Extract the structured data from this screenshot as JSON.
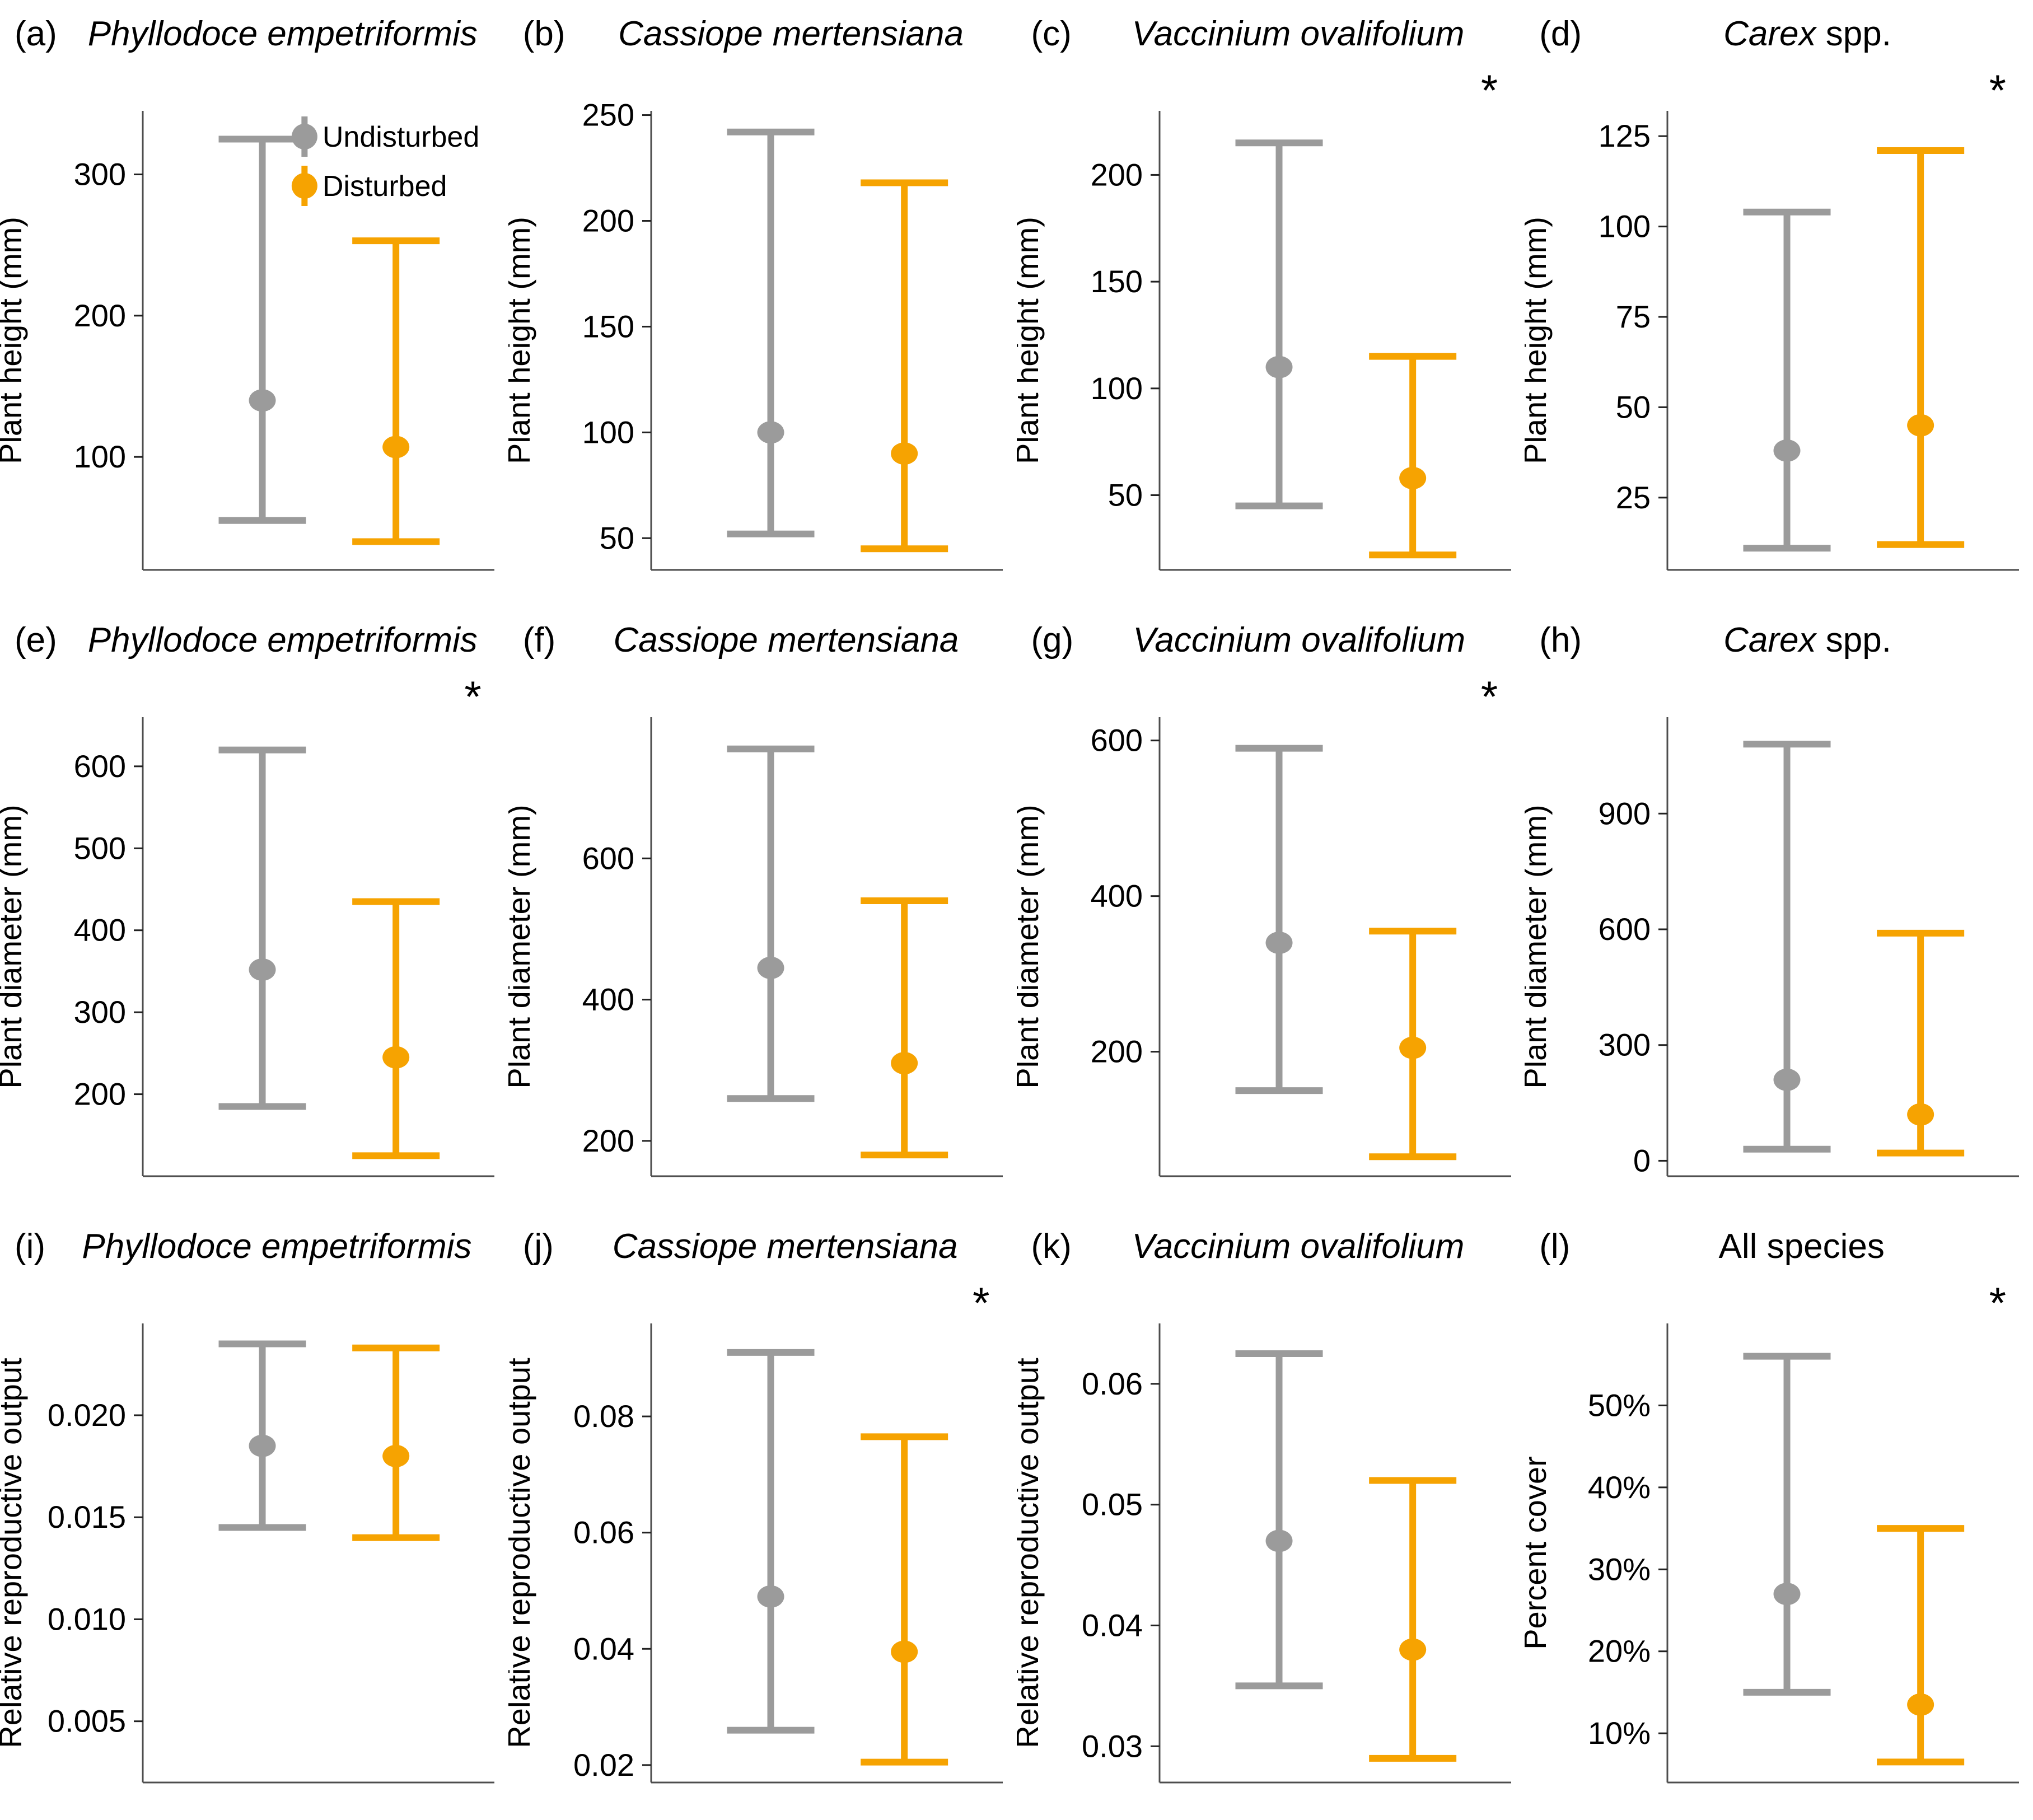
{
  "significance_marker": "*",
  "legend": {
    "panel_id": "a",
    "items": [
      {
        "label": "Undisturbed",
        "color": "#9B9B9B"
      },
      {
        "label": "Disturbed",
        "color": "#F6A301"
      }
    ]
  },
  "chart_data": [
    {
      "id": "a",
      "letter": "(a)",
      "type": "pointrange",
      "title_italic": "Phyllodoce empetriformis",
      "title_regular": "",
      "significant": false,
      "ylabel": "Plant height (mm)",
      "ylim": [
        20,
        345
      ],
      "yticks": [
        {
          "v": 100,
          "label": "100"
        },
        {
          "v": 200,
          "label": "200"
        },
        {
          "v": 300,
          "label": "300"
        }
      ],
      "series": [
        {
          "name": "Undisturbed",
          "mean": 140,
          "lower": 55,
          "upper": 325
        },
        {
          "name": "Disturbed",
          "mean": 107,
          "lower": 40,
          "upper": 253
        }
      ]
    },
    {
      "id": "b",
      "letter": "(b)",
      "type": "pointrange",
      "title_italic": "Cassiope mertensiana",
      "title_regular": "",
      "significant": false,
      "ylabel": "Plant height (mm)",
      "ylim": [
        35,
        252
      ],
      "yticks": [
        {
          "v": 50,
          "label": "50"
        },
        {
          "v": 100,
          "label": "100"
        },
        {
          "v": 150,
          "label": "150"
        },
        {
          "v": 200,
          "label": "200"
        },
        {
          "v": 250,
          "label": "250"
        }
      ],
      "series": [
        {
          "name": "Undisturbed",
          "mean": 100,
          "lower": 52,
          "upper": 242
        },
        {
          "name": "Disturbed",
          "mean": 90,
          "lower": 45,
          "upper": 218
        }
      ]
    },
    {
      "id": "c",
      "letter": "(c)",
      "type": "pointrange",
      "title_italic": "Vaccinium ovalifolium",
      "title_regular": "",
      "significant": true,
      "ylabel": "Plant height (mm)",
      "ylim": [
        15,
        230
      ],
      "yticks": [
        {
          "v": 50,
          "label": "50"
        },
        {
          "v": 100,
          "label": "100"
        },
        {
          "v": 150,
          "label": "150"
        },
        {
          "v": 200,
          "label": "200"
        }
      ],
      "series": [
        {
          "name": "Undisturbed",
          "mean": 110,
          "lower": 45,
          "upper": 215
        },
        {
          "name": "Disturbed",
          "mean": 58,
          "lower": 22,
          "upper": 115
        }
      ]
    },
    {
      "id": "d",
      "letter": "(d)",
      "type": "pointrange",
      "title_italic": "Carex",
      "title_regular": " spp.",
      "significant": true,
      "ylabel": "Plant height (mm)",
      "ylim": [
        5,
        132
      ],
      "yticks": [
        {
          "v": 25,
          "label": "25"
        },
        {
          "v": 50,
          "label": "50"
        },
        {
          "v": 75,
          "label": "75"
        },
        {
          "v": 100,
          "label": "100"
        },
        {
          "v": 125,
          "label": "125"
        }
      ],
      "series": [
        {
          "name": "Undisturbed",
          "mean": 38,
          "lower": 11,
          "upper": 104
        },
        {
          "name": "Disturbed",
          "mean": 45,
          "lower": 12,
          "upper": 121
        }
      ]
    },
    {
      "id": "e",
      "letter": "(e)",
      "type": "pointrange",
      "title_italic": "Phyllodoce empetriformis",
      "title_regular": "",
      "significant": true,
      "ylabel": "Plant diameter (mm)",
      "ylim": [
        100,
        660
      ],
      "yticks": [
        {
          "v": 200,
          "label": "200"
        },
        {
          "v": 300,
          "label": "300"
        },
        {
          "v": 400,
          "label": "400"
        },
        {
          "v": 500,
          "label": "500"
        },
        {
          "v": 600,
          "label": "600"
        }
      ],
      "series": [
        {
          "name": "Undisturbed",
          "mean": 352,
          "lower": 185,
          "upper": 620
        },
        {
          "name": "Disturbed",
          "mean": 245,
          "lower": 125,
          "upper": 435
        }
      ]
    },
    {
      "id": "f",
      "letter": "(f)",
      "type": "pointrange",
      "title_italic": "Cassiope mertensiana",
      "title_regular": "",
      "significant": false,
      "ylabel": "Plant diameter (mm)",
      "ylim": [
        150,
        800
      ],
      "yticks": [
        {
          "v": 200,
          "label": "200"
        },
        {
          "v": 400,
          "label": "400"
        },
        {
          "v": 600,
          "label": "600"
        }
      ],
      "series": [
        {
          "name": "Undisturbed",
          "mean": 445,
          "lower": 260,
          "upper": 755
        },
        {
          "name": "Disturbed",
          "mean": 310,
          "lower": 180,
          "upper": 540
        }
      ]
    },
    {
      "id": "g",
      "letter": "(g)",
      "type": "pointrange",
      "title_italic": "Vaccinium ovalifolium",
      "title_regular": "",
      "significant": true,
      "ylabel": "Plant diameter (mm)",
      "ylim": [
        40,
        630
      ],
      "yticks": [
        {
          "v": 200,
          "label": "200"
        },
        {
          "v": 400,
          "label": "400"
        },
        {
          "v": 600,
          "label": "600"
        }
      ],
      "series": [
        {
          "name": "Undisturbed",
          "mean": 340,
          "lower": 150,
          "upper": 590
        },
        {
          "name": "Disturbed",
          "mean": 205,
          "lower": 65,
          "upper": 355
        }
      ]
    },
    {
      "id": "h",
      "letter": "(h)",
      "type": "pointrange",
      "title_italic": "Carex",
      "title_regular": " spp.",
      "significant": false,
      "ylabel": "Plant diameter (mm)",
      "ylim": [
        -40,
        1150
      ],
      "yticks": [
        {
          "v": 0,
          "label": "0"
        },
        {
          "v": 300,
          "label": "300"
        },
        {
          "v": 600,
          "label": "600"
        },
        {
          "v": 900,
          "label": "900"
        }
      ],
      "series": [
        {
          "name": "Undisturbed",
          "mean": 210,
          "lower": 30,
          "upper": 1080
        },
        {
          "name": "Disturbed",
          "mean": 120,
          "lower": 20,
          "upper": 590
        }
      ]
    },
    {
      "id": "i",
      "letter": "(i)",
      "type": "pointrange",
      "title_italic": "Phyllodoce empetriformis",
      "title_regular": "",
      "significant": false,
      "ylabel": "Relative reproductive output",
      "ylim": [
        0.002,
        0.0245
      ],
      "yticks": [
        {
          "v": 0.005,
          "label": "0.005"
        },
        {
          "v": 0.01,
          "label": "0.010"
        },
        {
          "v": 0.015,
          "label": "0.015"
        },
        {
          "v": 0.02,
          "label": "0.020"
        }
      ],
      "series": [
        {
          "name": "Undisturbed",
          "mean": 0.0185,
          "lower": 0.0145,
          "upper": 0.0235
        },
        {
          "name": "Disturbed",
          "mean": 0.018,
          "lower": 0.014,
          "upper": 0.0233
        }
      ]
    },
    {
      "id": "j",
      "letter": "(j)",
      "type": "pointrange",
      "title_italic": "Cassiope mertensiana",
      "title_regular": "",
      "significant": true,
      "ylabel": "Relative reproductive output",
      "ylim": [
        0.017,
        0.096
      ],
      "yticks": [
        {
          "v": 0.02,
          "label": "0.02"
        },
        {
          "v": 0.04,
          "label": "0.04"
        },
        {
          "v": 0.06,
          "label": "0.06"
        },
        {
          "v": 0.08,
          "label": "0.08"
        }
      ],
      "series": [
        {
          "name": "Undisturbed",
          "mean": 0.049,
          "lower": 0.026,
          "upper": 0.091
        },
        {
          "name": "Disturbed",
          "mean": 0.0395,
          "lower": 0.0205,
          "upper": 0.0765
        }
      ]
    },
    {
      "id": "k",
      "letter": "(k)",
      "type": "pointrange",
      "title_italic": "Vaccinium ovalifolium",
      "title_regular": "",
      "significant": false,
      "ylabel": "Relative reproductive output",
      "ylim": [
        0.027,
        0.065
      ],
      "yticks": [
        {
          "v": 0.03,
          "label": "0.03"
        },
        {
          "v": 0.04,
          "label": "0.04"
        },
        {
          "v": 0.05,
          "label": "0.05"
        },
        {
          "v": 0.06,
          "label": "0.06"
        }
      ],
      "series": [
        {
          "name": "Undisturbed",
          "mean": 0.047,
          "lower": 0.035,
          "upper": 0.0625
        },
        {
          "name": "Disturbed",
          "mean": 0.038,
          "lower": 0.029,
          "upper": 0.052
        }
      ]
    },
    {
      "id": "l",
      "letter": "(l)",
      "type": "pointrange",
      "title_italic": "",
      "title_regular": "All species",
      "significant": true,
      "ylabel": "Percent cover",
      "ylim": [
        4,
        60
      ],
      "yticks": [
        {
          "v": 10,
          "label": "10%"
        },
        {
          "v": 20,
          "label": "20%"
        },
        {
          "v": 30,
          "label": "30%"
        },
        {
          "v": 40,
          "label": "40%"
        },
        {
          "v": 50,
          "label": "50%"
        }
      ],
      "series": [
        {
          "name": "Undisturbed",
          "mean": 27,
          "lower": 15,
          "upper": 56
        },
        {
          "name": "Disturbed",
          "mean": 13.5,
          "lower": 6.5,
          "upper": 35
        }
      ]
    }
  ]
}
